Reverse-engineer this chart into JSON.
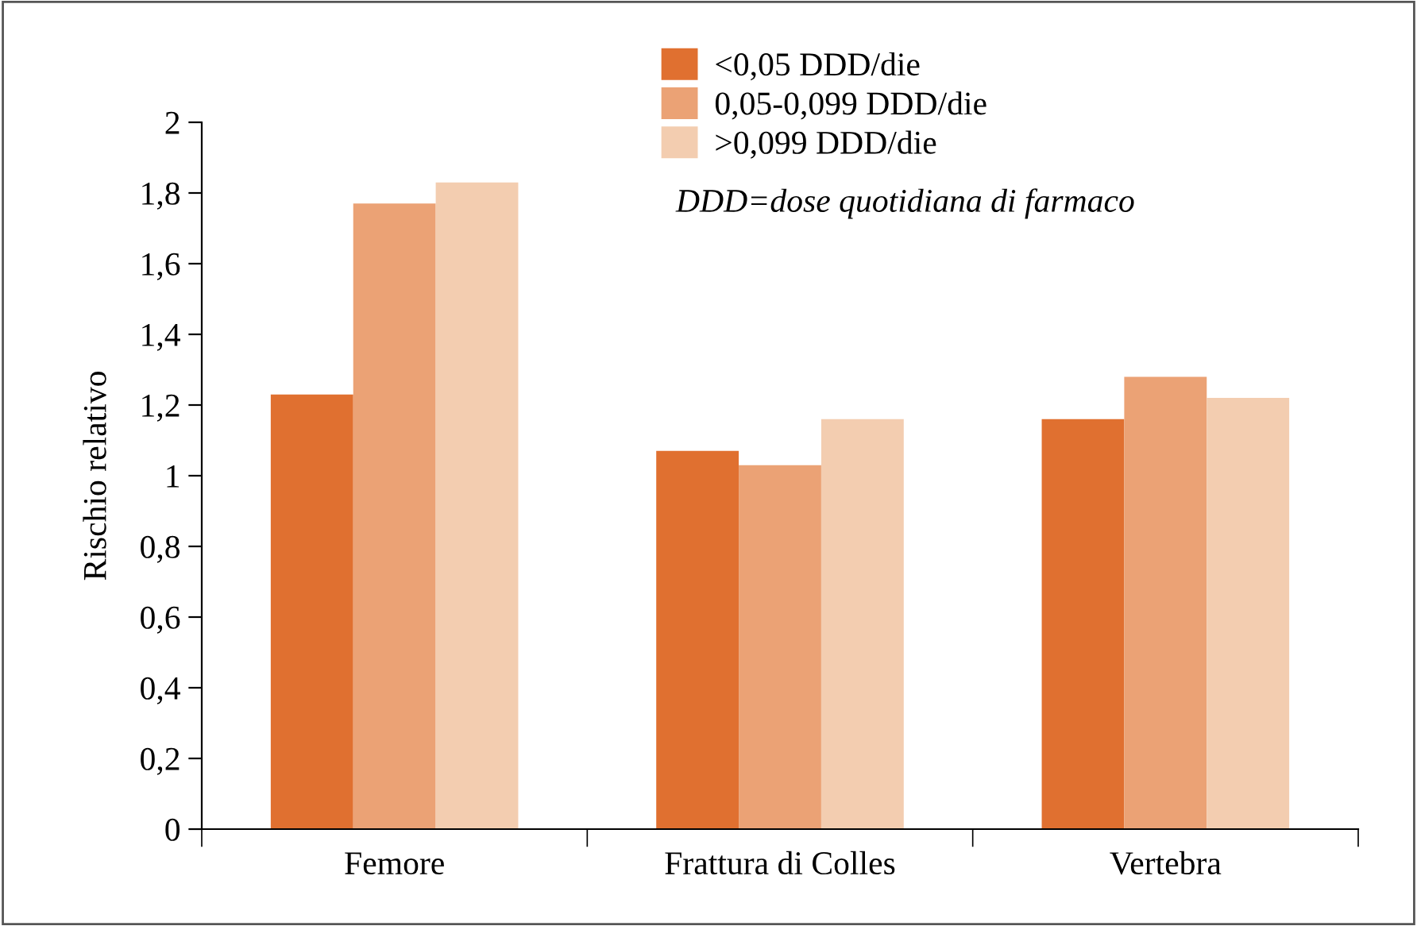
{
  "chart_data": {
    "type": "bar",
    "ylabel": "Rischio relativo",
    "categories": [
      "Femore",
      "Frattura di Colles",
      "Vertebra"
    ],
    "series": [
      {
        "name": "<0,05 DDD/die",
        "color": "#e07030",
        "values": [
          1.23,
          1.07,
          1.16
        ]
      },
      {
        "name": "0,05-0,099 DDD/die",
        "color": "#eba275",
        "values": [
          1.77,
          1.03,
          1.28
        ]
      },
      {
        "name": ">0,099 DDD/die",
        "color": "#f3cdb0",
        "values": [
          1.83,
          1.16,
          1.22
        ]
      }
    ],
    "ylim": [
      0,
      2
    ],
    "yticks": [
      0,
      {
        "value": 0.2,
        "label": "0,2"
      },
      {
        "value": 0.4,
        "label": "0,4"
      },
      {
        "value": 0.6,
        "label": "0,6"
      },
      {
        "value": 0.8,
        "label": "0,8"
      },
      1,
      {
        "value": 1.2,
        "label": "1,2"
      },
      {
        "value": 1.4,
        "label": "1,4"
      },
      {
        "value": 1.6,
        "label": "1,6"
      },
      {
        "value": 1.8,
        "label": "1,8"
      },
      2
    ],
    "annotations": [
      "DDD=dose quotidiana di farmaco"
    ],
    "legend": "top",
    "grid": false
  }
}
